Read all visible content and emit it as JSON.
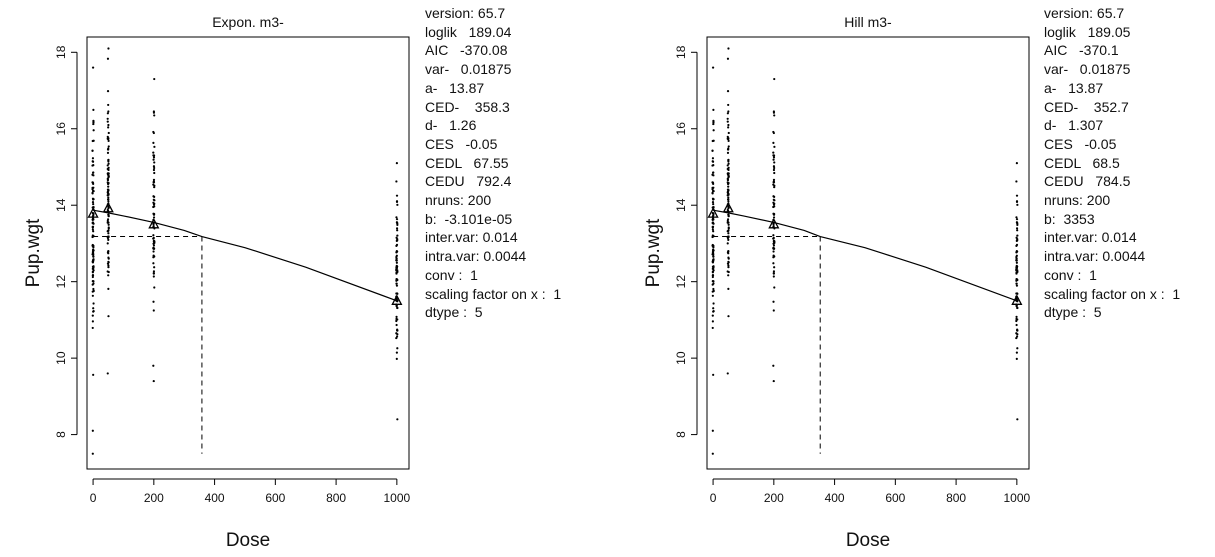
{
  "chart_data": [
    {
      "type": "scatter",
      "title": "Expon. m3-",
      "xlabel": "Dose",
      "ylabel": "Pup.wgt",
      "xlim": [
        -20,
        1040
      ],
      "ylim": [
        7.1,
        18.4
      ],
      "xticks": [
        0,
        200,
        400,
        600,
        800,
        1000
      ],
      "yticks": [
        8,
        10,
        12,
        14,
        16,
        18
      ],
      "grid": false,
      "fit_curve": {
        "x": [
          0,
          50,
          100,
          200,
          300,
          358.3,
          500,
          700,
          1000
        ],
        "y": [
          13.87,
          13.8,
          13.72,
          13.55,
          13.34,
          13.18,
          12.89,
          12.38,
          11.5
        ]
      },
      "group_means": [
        {
          "x": 0,
          "y": 13.78
        },
        {
          "x": 50,
          "y": 13.92
        },
        {
          "x": 200,
          "y": 13.5
        },
        {
          "x": 1000,
          "y": 11.5
        }
      ],
      "ces_line": {
        "y": 13.18,
        "x_start": 0,
        "x_end": 358.3,
        "y_bottom": 7.5
      },
      "groups": [
        {
          "dose": 0,
          "min": 7.5,
          "max": 17.6,
          "n": 115,
          "low_outliers": [
            7.5,
            8.1
          ],
          "seed": 11
        },
        {
          "dose": 50,
          "min": 9.6,
          "max": 18.1,
          "n": 105,
          "low_outliers": [
            9.6
          ],
          "seed": 23
        },
        {
          "dose": 200,
          "min": 9.4,
          "max": 17.3,
          "n": 75,
          "low_outliers": [
            9.4,
            9.8
          ],
          "seed": 37
        },
        {
          "dose": 1000,
          "min": 8.4,
          "max": 15.1,
          "n": 85,
          "low_outliers": [
            8.4
          ],
          "seed": 53
        }
      ],
      "stats": [
        "version: 65.7",
        "loglik   189.04",
        "AIC   -370.08",
        "var-   0.01875",
        "a-   13.87",
        "CED-    358.3",
        "d-   1.26",
        "CES   -0.05",
        "CEDL   67.55",
        "CEDU   792.4",
        "nruns: 200",
        "b:  -3.101e-05",
        "inter.var: 0.014",
        "intra.var: 0.0044",
        "conv :  1",
        "scaling factor on x :  1",
        "dtype :  5"
      ]
    },
    {
      "type": "scatter",
      "title": "Hill m3-",
      "xlabel": "Dose",
      "ylabel": "Pup.wgt",
      "xlim": [
        -20,
        1040
      ],
      "ylim": [
        7.1,
        18.4
      ],
      "xticks": [
        0,
        200,
        400,
        600,
        800,
        1000
      ],
      "yticks": [
        8,
        10,
        12,
        14,
        16,
        18
      ],
      "grid": false,
      "fit_curve": {
        "x": [
          0,
          50,
          100,
          200,
          300,
          352.7,
          500,
          700,
          1000
        ],
        "y": [
          13.87,
          13.8,
          13.72,
          13.55,
          13.34,
          13.18,
          12.89,
          12.38,
          11.5
        ]
      },
      "group_means": [
        {
          "x": 0,
          "y": 13.78
        },
        {
          "x": 50,
          "y": 13.92
        },
        {
          "x": 200,
          "y": 13.5
        },
        {
          "x": 1000,
          "y": 11.5
        }
      ],
      "ces_line": {
        "y": 13.18,
        "x_start": 0,
        "x_end": 352.7,
        "y_bottom": 7.5
      },
      "groups": [
        {
          "dose": 0,
          "min": 7.5,
          "max": 17.6,
          "n": 115,
          "low_outliers": [
            7.5,
            8.1
          ],
          "seed": 11
        },
        {
          "dose": 50,
          "min": 9.6,
          "max": 18.1,
          "n": 105,
          "low_outliers": [
            9.6
          ],
          "seed": 23
        },
        {
          "dose": 200,
          "min": 9.4,
          "max": 17.3,
          "n": 75,
          "low_outliers": [
            9.4,
            9.8
          ],
          "seed": 37
        },
        {
          "dose": 1000,
          "min": 8.4,
          "max": 15.1,
          "n": 85,
          "low_outliers": [
            8.4
          ],
          "seed": 53
        }
      ],
      "stats": [
        "version: 65.7",
        "loglik   189.05",
        "AIC   -370.1",
        "var-   0.01875",
        "a-   13.87",
        "CED-    352.7",
        "d-   1.307",
        "CES   -0.05",
        "CEDL   68.5",
        "CEDU   784.5",
        "nruns: 200",
        "b:  3353",
        "inter.var: 0.014",
        "intra.var: 0.0044",
        "conv :  1",
        "scaling factor on x :  1",
        "dtype :  5"
      ]
    }
  ]
}
